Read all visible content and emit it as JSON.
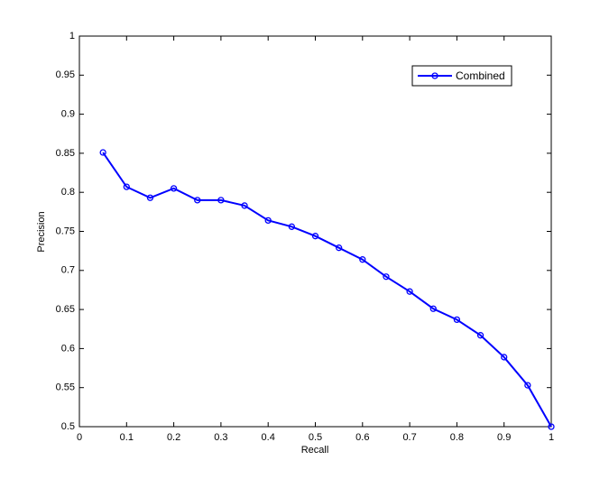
{
  "chart_data": {
    "type": "line",
    "xlabel": "Recall",
    "ylabel": "Precision",
    "x": [
      0.05,
      0.1,
      0.15,
      0.2,
      0.25,
      0.3,
      0.35,
      0.4,
      0.45,
      0.5,
      0.55,
      0.6,
      0.65,
      0.7,
      0.75,
      0.8,
      0.85,
      0.9,
      0.95,
      1
    ],
    "series": [
      {
        "name": "Combined",
        "color": "#0000ff",
        "values": [
          0.851,
          0.807,
          0.793,
          0.805,
          0.79,
          0.79,
          0.783,
          0.764,
          0.756,
          0.744,
          0.729,
          0.714,
          0.692,
          0.673,
          0.651,
          0.637,
          0.617,
          0.589,
          0.553,
          0.5
        ]
      }
    ],
    "xlim": [
      0,
      1
    ],
    "xticks": [
      0,
      0.1,
      0.2,
      0.3,
      0.4,
      0.5,
      0.6,
      0.7,
      0.8,
      0.9,
      1
    ],
    "ylim": [
      0.5,
      1
    ],
    "yticks": [
      0.5,
      0.55,
      0.6,
      0.65,
      0.7,
      0.75,
      0.8,
      0.85,
      0.9,
      0.95,
      1
    ],
    "grid": false,
    "legend": "northeast"
  }
}
